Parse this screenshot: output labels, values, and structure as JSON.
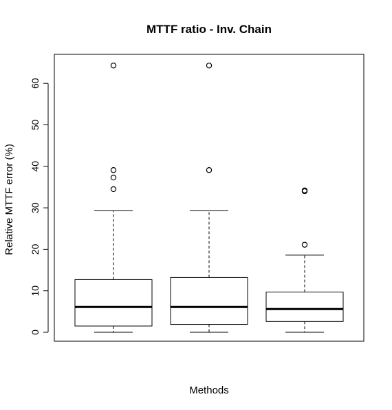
{
  "chart_data": {
    "type": "boxplot",
    "title": "MTTF ratio - Inv. Chain",
    "xlabel": "Methods",
    "ylabel": "Relative MTTF error (%)",
    "ylim": [
      0,
      65
    ],
    "yticks": [
      "0",
      "10",
      "20",
      "30",
      "40",
      "50",
      "60"
    ],
    "categories": [
      "",
      "",
      ""
    ],
    "boxes": [
      {
        "min": 0,
        "q1": 1.5,
        "median": 6.1,
        "q3": 12.7,
        "max": 29.3,
        "outliers": [
          34.5,
          37.3,
          39.1,
          64.3
        ]
      },
      {
        "min": 0,
        "q1": 1.9,
        "median": 6.1,
        "q3": 13.2,
        "max": 29.3,
        "outliers": [
          39.1,
          64.3
        ]
      },
      {
        "min": 0,
        "q1": 2.6,
        "median": 5.6,
        "q3": 9.7,
        "max": 18.6,
        "outliers": [
          21.1,
          34.0,
          34.2
        ]
      }
    ],
    "grid": false,
    "legend": "none"
  }
}
